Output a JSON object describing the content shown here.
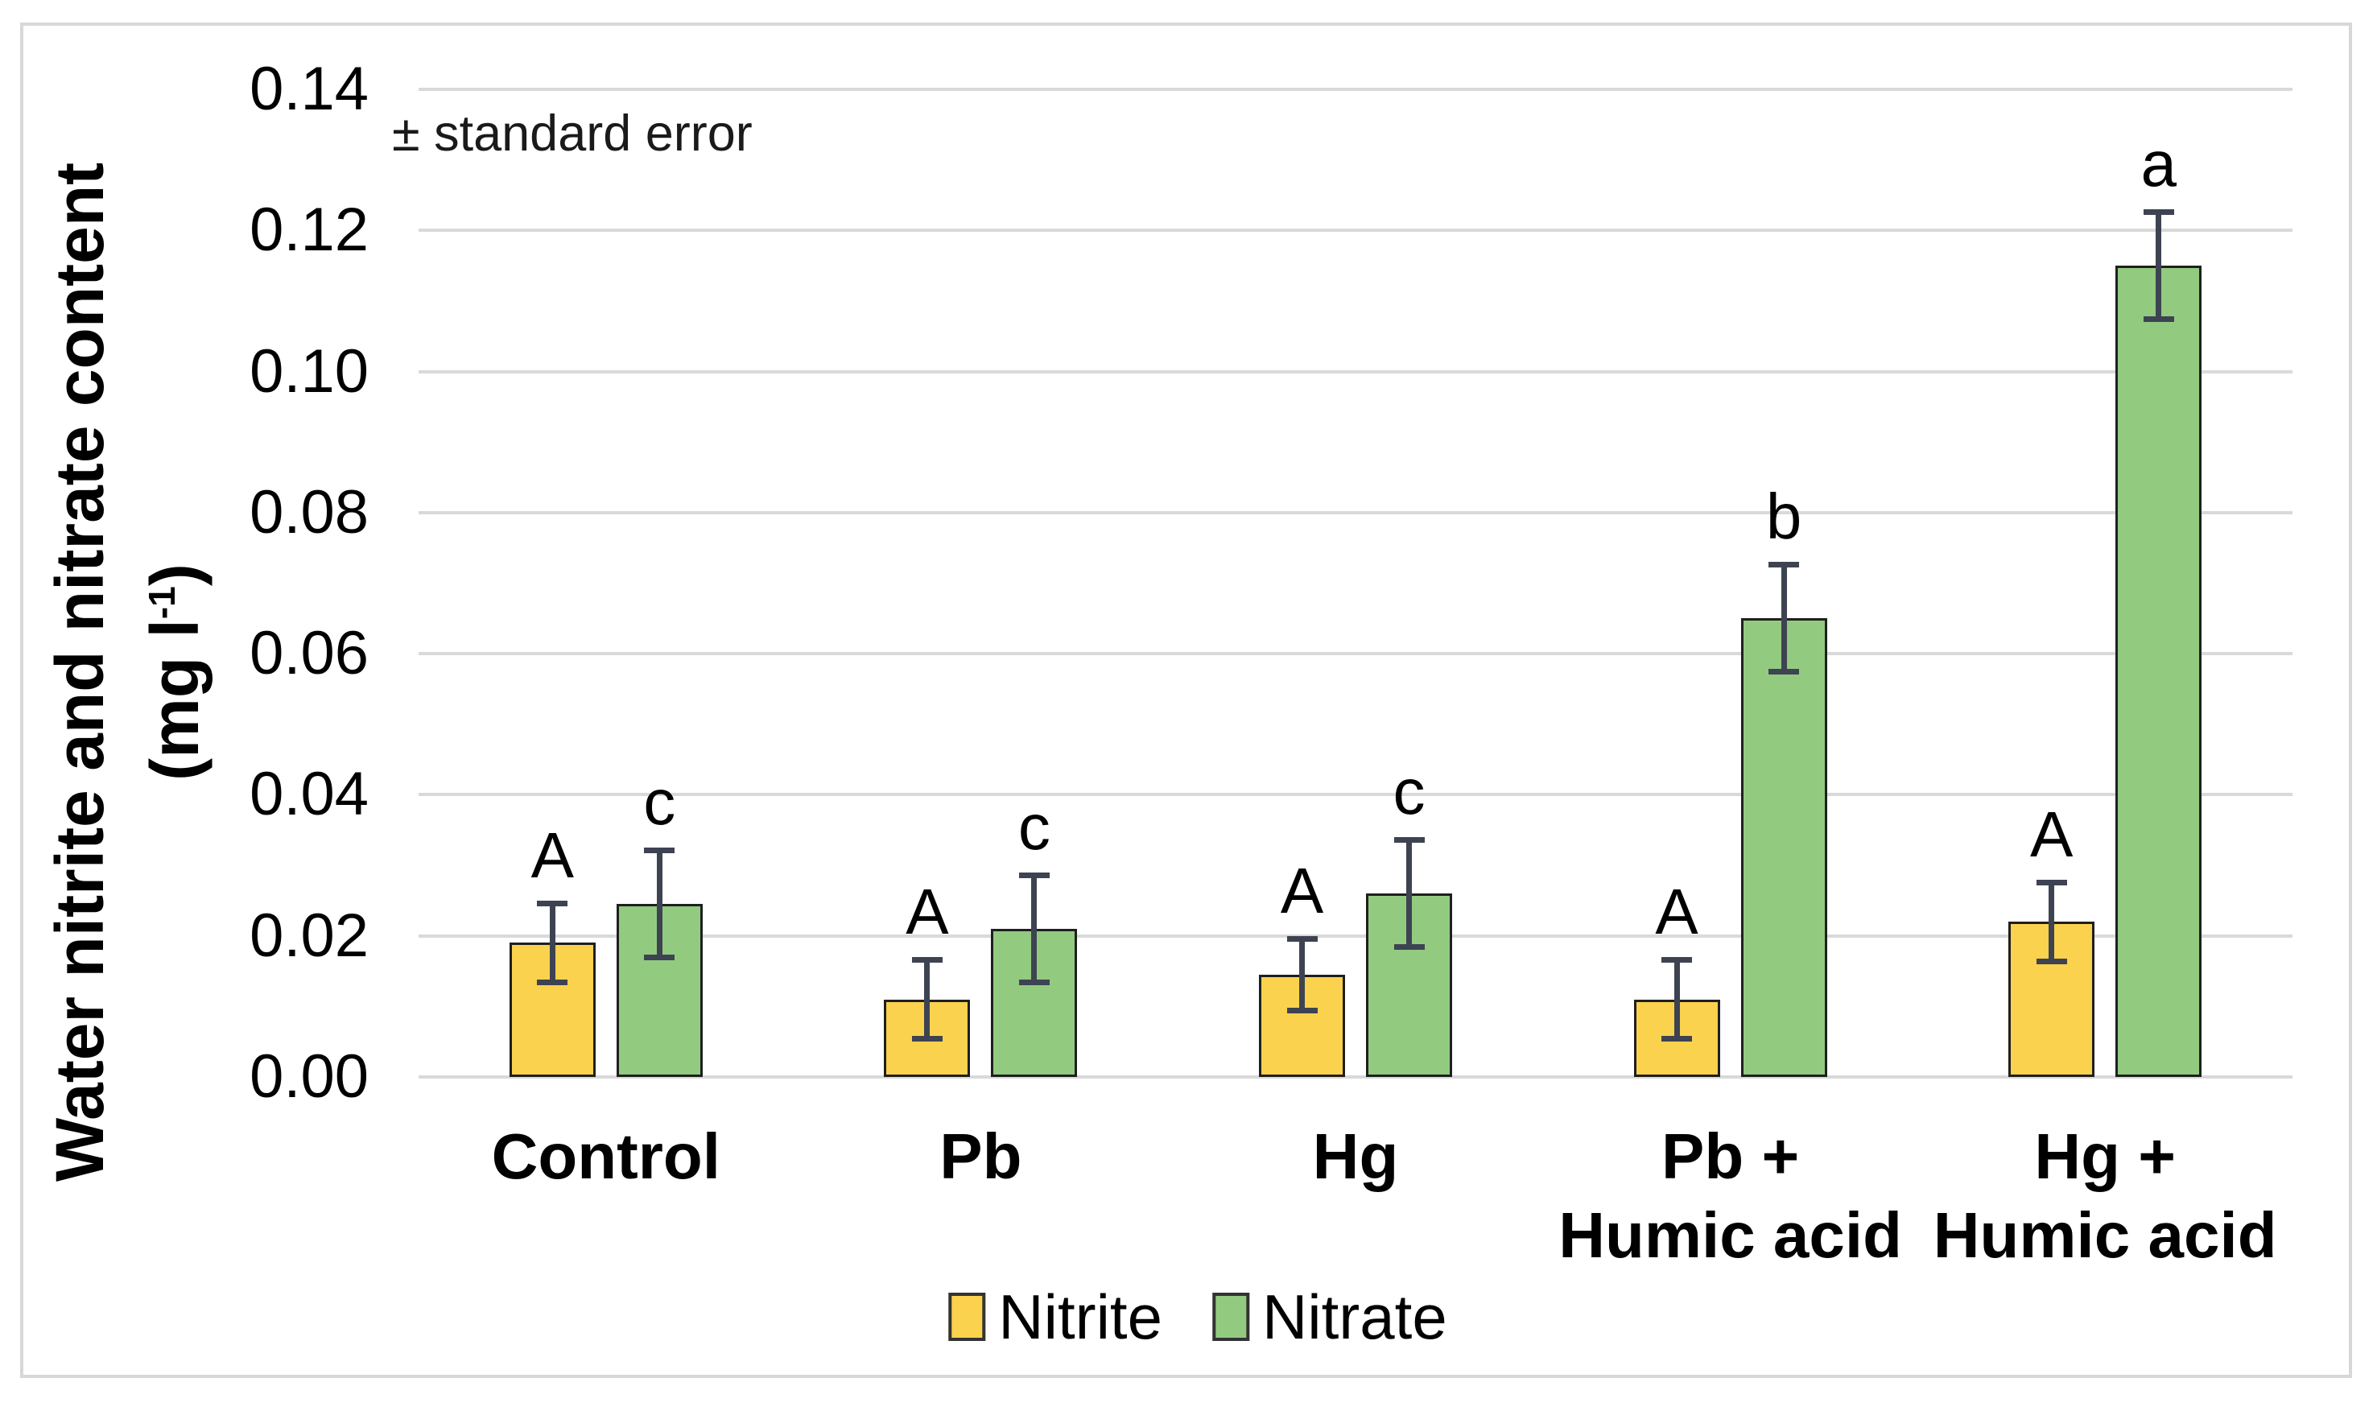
{
  "figure": {
    "annotation": "± standard error",
    "y_axis": {
      "title": "Water nitrite and nitrate content",
      "unit_prefix": "(mg l",
      "unit_sup": "-1",
      "unit_suffix": ")",
      "tick_labels": [
        "0.00",
        "0.02",
        "0.04",
        "0.06",
        "0.08",
        "0.10",
        "0.12",
        "0.14"
      ]
    },
    "legend": [
      {
        "label": "Nitrite",
        "color": "#fbd24d"
      },
      {
        "label": "Nitrate",
        "color": "#92cb80"
      }
    ]
  },
  "chart_data": {
    "type": "bar",
    "title": "",
    "xlabel": "",
    "ylabel": "Water nitrite and nitrate content (mg l-1)",
    "ylim": [
      0,
      0.14
    ],
    "ytick_step": 0.02,
    "grid": true,
    "legend_position": "bottom",
    "annotation": "± standard error",
    "categories": [
      "Control",
      "Pb",
      "Hg",
      "Pb + Humic acid",
      "Hg + Humic acid"
    ],
    "category_lines": [
      [
        "Control"
      ],
      [
        "Pb"
      ],
      [
        "Hg"
      ],
      [
        "Pb +",
        "Humic acid"
      ],
      [
        "Hg +",
        "Humic acid"
      ]
    ],
    "series": [
      {
        "name": "Nitrite",
        "color": "#fbd24d",
        "values": [
          0.019,
          0.011,
          0.0145,
          0.011,
          0.022
        ],
        "errors": [
          0.006,
          0.006,
          0.0055,
          0.006,
          0.006
        ],
        "letters": [
          "A",
          "A",
          "A",
          "A",
          "A"
        ]
      },
      {
        "name": "Nitrate",
        "color": "#92cb80",
        "values": [
          0.0245,
          0.021,
          0.026,
          0.065,
          0.115
        ],
        "errors": [
          0.008,
          0.008,
          0.008,
          0.008,
          0.008
        ],
        "letters": [
          "c",
          "c",
          "c",
          "b",
          "a"
        ]
      }
    ],
    "bar_border_color": "#1f1f1f",
    "error_bar_color": "#3e4352",
    "grid_color": "#d9d9d9"
  }
}
